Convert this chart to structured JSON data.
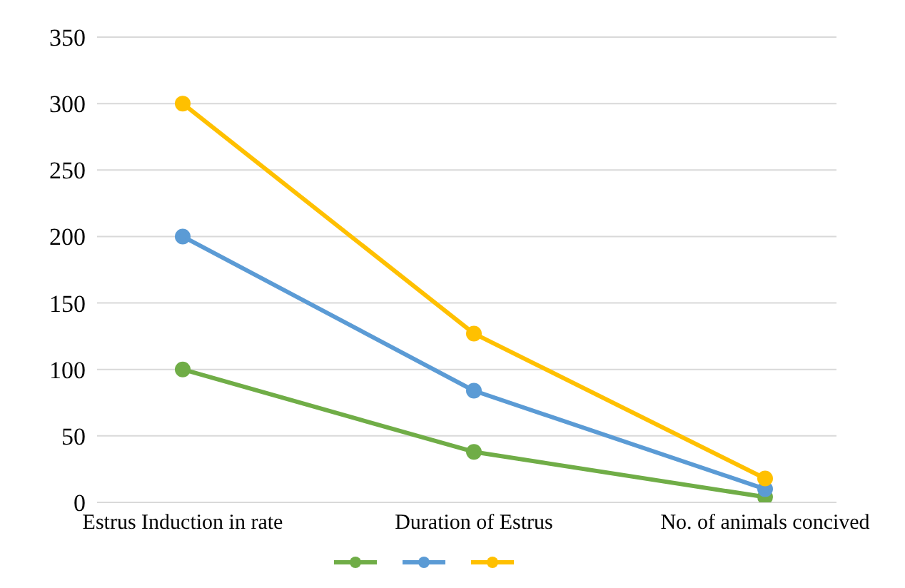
{
  "chart_data": {
    "type": "line",
    "categories": [
      "Estrus Induction in rate",
      "Duration of Estrus",
      "No. of animals concived"
    ],
    "series": [
      {
        "color": "#70ad47",
        "values": [
          100,
          38,
          4
        ]
      },
      {
        "color": "#5b9bd5",
        "values": [
          200,
          84,
          10
        ]
      },
      {
        "color": "#ffc000",
        "values": [
          300,
          127,
          18
        ]
      }
    ],
    "ylim": [
      0,
      350
    ],
    "yticks": [
      0,
      50,
      100,
      150,
      200,
      250,
      300,
      350
    ],
    "grid": "y",
    "marker": "circle",
    "line_style": "solid"
  }
}
